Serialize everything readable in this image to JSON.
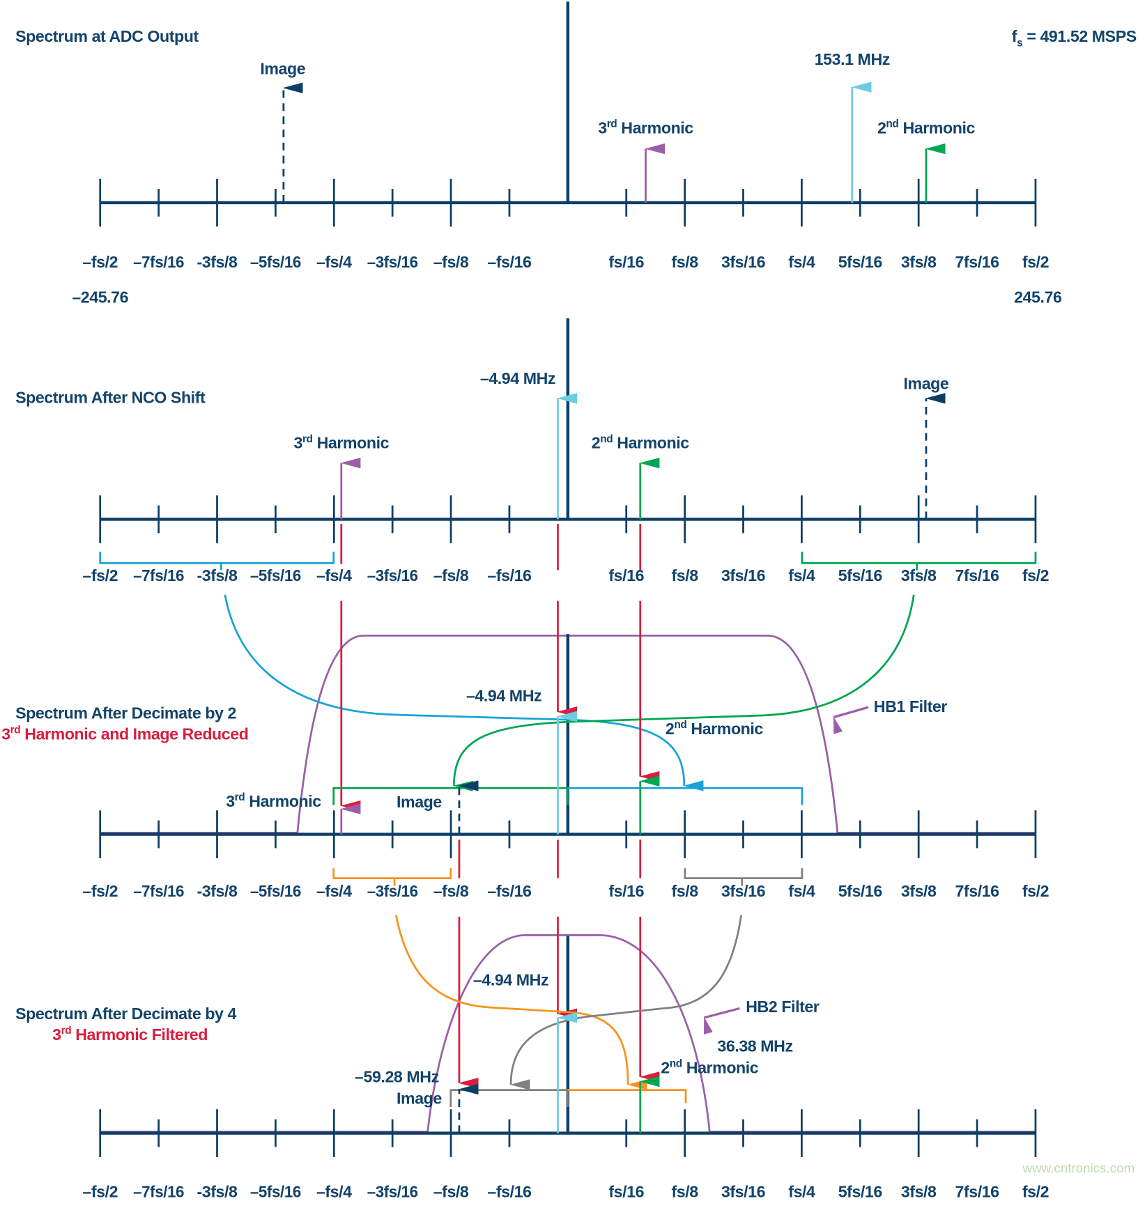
{
  "axis_tick_labels": [
    "–fs/2",
    "–7fs/16",
    "-3fs/8",
    "–5fs/16",
    "–fs/4",
    "–3fs/16",
    "–fs/8",
    "–fs/16",
    "",
    "fs/16",
    "fs/8",
    "3fs/16",
    "fs/4",
    "5fs/16",
    "3fs/8",
    "7fs/16",
    "fs/2"
  ],
  "colors": {
    "axis": "#0d3f66",
    "signal": "#6ccde0",
    "third_harmonic": "#9b5fa8",
    "second_harmonic": "#00a651",
    "alias": "#d71f3e",
    "bracket_low": "#1aa3d6",
    "bracket_orange": "#f7931e",
    "bracket_gray": "#808080",
    "filter": "#9b5fa8"
  },
  "panel1": {
    "title": "Spectrum at ADC Output",
    "fs_label": "fs = 491.52 MSPS",
    "image_label": "Image",
    "third_label": "3rd Harmonic",
    "signal_label": "153.1 MHz",
    "second_label": "2nd Harmonic",
    "min_value": "–245.76",
    "max_value": "245.76"
  },
  "panel2": {
    "title": "Spectrum After NCO Shift",
    "signal_label": "–4.94 MHz",
    "image_label": "Image",
    "third_label": "3rd Harmonic",
    "second_label": "2nd Harmonic"
  },
  "panel3": {
    "title": "Spectrum After Decimate by 2",
    "subtitle": "3rd Harmonic and Image Reduced",
    "signal_label": "–4.94 MHz",
    "second_label": "2nd Harmonic",
    "third_label": "3rd Harmonic",
    "image_label": "Image",
    "filter_label": "HB1 Filter"
  },
  "panel4": {
    "title": "Spectrum After Decimate by 4",
    "subtitle": "3rd Harmonic Filtered",
    "signal_label": "–4.94 MHz",
    "filter_label": "HB2 Filter",
    "second_freq_label": "36.38 MHz",
    "second_label": "2nd Harmonic",
    "image_freq_label": "–59.28 MHz",
    "image_label": "Image"
  },
  "watermark": "www.cntronics.com"
}
